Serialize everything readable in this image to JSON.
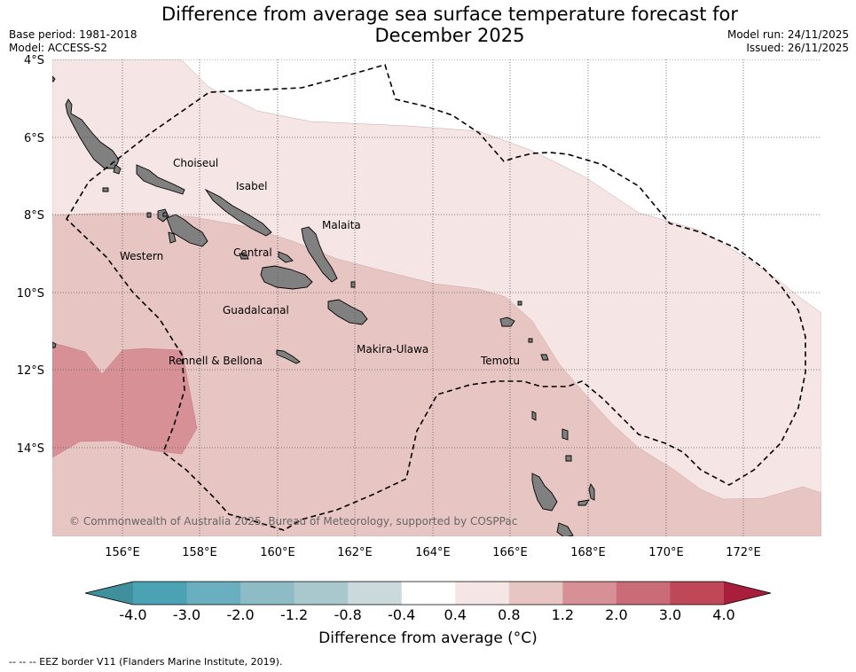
{
  "header": {
    "title_line1": "Difference from average sea surface temperature forecast for",
    "title_line2": "December 2025",
    "base_period": "Base period: 1981-2018",
    "model": "Model: ACCESS-S2",
    "model_run": "Model run: 24/11/2025",
    "issued": "Issued: 26/11/2025"
  },
  "map": {
    "lat_labels": [
      "4°S",
      "6°S",
      "8°S",
      "10°S",
      "12°S",
      "14°S"
    ],
    "lon_labels": [
      "156°E",
      "158°E",
      "160°E",
      "162°E",
      "164°E",
      "166°E",
      "168°E",
      "170°E",
      "172°E"
    ],
    "places": {
      "choiseul": "Choiseul",
      "isabel": "Isabel",
      "malaita": "Malaita",
      "western": "Western",
      "central": "Central",
      "guadalcanal": "Guadalcanal",
      "makira": "Makira-Ulawa",
      "temotu": "Temotu",
      "rennell": "Rennell & Bellona"
    },
    "copyright": "© Commonwealth of Australia 2025, Bureau of Meteorology, supported by COSPPac",
    "colors": {
      "land": "#808080",
      "band_0_4_0_8": "#f5e6e5",
      "band_0_8_1_2": "#e7c5c2",
      "band_1_2_2_0": "#d69096"
    }
  },
  "colorbar": {
    "ticks": [
      "-4.0",
      "-3.0",
      "-2.0",
      "-1.2",
      "-0.8",
      "-0.4",
      "0.4",
      "0.8",
      "1.2",
      "2.0",
      "3.0",
      "4.0"
    ],
    "colors": [
      "#3f8f9c",
      "#4ba2b3",
      "#6aafbf",
      "#8dbcc6",
      "#a9c8cd",
      "#cad9db",
      "#ffffff",
      "#f5e6e5",
      "#e7c5c2",
      "#d69096",
      "#c96c77",
      "#bf4858",
      "#a91e3a"
    ],
    "label": "Difference from average (°C)"
  },
  "footer": {
    "eez_note": "-- -- -- EEZ border V11 (Flanders Marine Institute, 2019)."
  }
}
